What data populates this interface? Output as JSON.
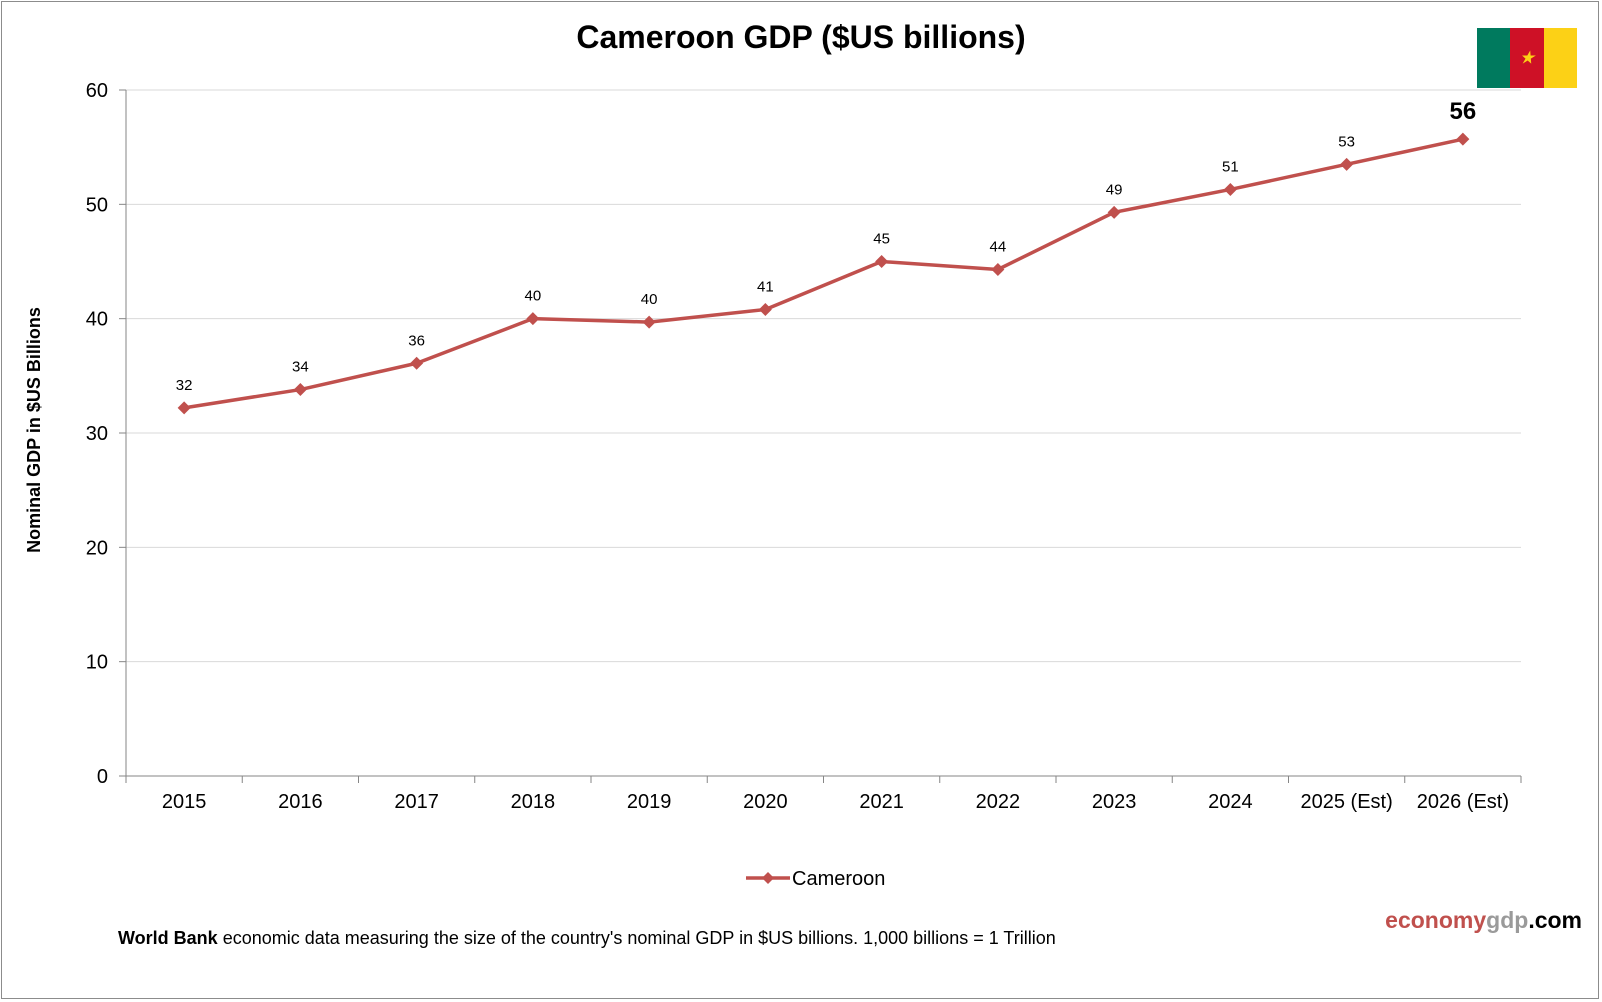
{
  "chart_data": {
    "type": "line",
    "title": "Cameroon GDP ($US billions)",
    "xlabel": "",
    "ylabel": "Nominal GDP in $US Billions",
    "categories": [
      "2015",
      "2016",
      "2017",
      "2018",
      "2019",
      "2020",
      "2021",
      "2022",
      "2023",
      "2024",
      "2025 (Est)",
      "2026 (Est)"
    ],
    "series": [
      {
        "name": "Cameroon",
        "values": [
          32.2,
          33.8,
          36.1,
          40.0,
          39.7,
          40.8,
          45.0,
          44.3,
          49.3,
          51.3,
          53.5,
          55.7
        ],
        "labels": [
          "32",
          "34",
          "36",
          "40",
          "40",
          "41",
          "45",
          "44",
          "49",
          "51",
          "53",
          "56"
        ],
        "color": "#c0504d"
      }
    ],
    "ylim": [
      0,
      60
    ],
    "yticks": [
      "0",
      "10",
      "20",
      "30",
      "40",
      "50",
      "60"
    ],
    "grid": true,
    "legend": "bottom"
  },
  "footnote": {
    "source": "World Bank",
    "text": "economic data  measuring  the size of the country's nominal  GDP in $US billions.  1,000 billions = 1 Trillion"
  },
  "brand": {
    "part1": "economy",
    "part2": "gdp",
    "part3": ".com"
  },
  "flag": {
    "colors": [
      "#007a5e",
      "#ce1126",
      "#fcd116"
    ],
    "star": "★",
    "star_icon": "star-icon"
  }
}
